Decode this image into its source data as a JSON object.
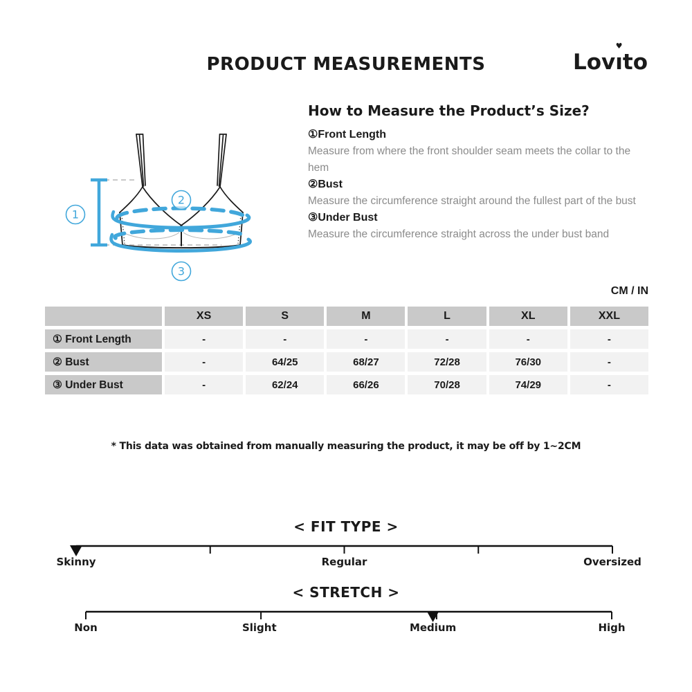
{
  "header": {
    "title": "PRODUCT MEASUREMENTS",
    "logo": "Lovito"
  },
  "how_to": {
    "heading": "How to Measure the Product’s Size?",
    "items": [
      {
        "marker": "①",
        "label": "Front Length",
        "description": "Measure from where the front shoulder seam meets the collar to the hem"
      },
      {
        "marker": "②",
        "label": "Bust",
        "description": "Measure the circumference straight around the fullest part of the bust"
      },
      {
        "marker": "③",
        "label": "Under Bust",
        "description": "Measure the circumference straight across the under bust band"
      }
    ]
  },
  "diagram": {
    "markers": [
      "1",
      "2",
      "3"
    ]
  },
  "units_label": "CM / IN",
  "size_table": {
    "columns": [
      "XS",
      "S",
      "M",
      "L",
      "XL",
      "XXL"
    ],
    "rows": [
      {
        "label": "① Front Length",
        "values": [
          "-",
          "-",
          "-",
          "-",
          "-",
          "-"
        ]
      },
      {
        "label": "② Bust",
        "values": [
          "-",
          "64/25",
          "68/27",
          "72/28",
          "76/30",
          "-"
        ]
      },
      {
        "label": "③ Under Bust",
        "values": [
          "-",
          "62/24",
          "66/26",
          "70/28",
          "74/29",
          "-"
        ]
      }
    ]
  },
  "footnote": "* This data was obtained from manually measuring the product, it may be off by 1~2CM",
  "scales": [
    {
      "title": "< FIT TYPE >",
      "marker_pct": 0,
      "ticks_pct": [
        0,
        25,
        50,
        75,
        100
      ],
      "labels": [
        {
          "text": "Skinny",
          "pct": 0
        },
        {
          "text": "Regular",
          "pct": 50
        },
        {
          "text": "Oversized",
          "pct": 100
        }
      ]
    },
    {
      "title": "< STRETCH >",
      "marker_pct": 66,
      "ticks_pct": [
        0,
        33.3,
        66.7,
        100
      ],
      "labels": [
        {
          "text": "Non",
          "pct": 0
        },
        {
          "text": "Slight",
          "pct": 33
        },
        {
          "text": "Medium",
          "pct": 66
        },
        {
          "text": "High",
          "pct": 100
        }
      ]
    }
  ],
  "colors": {
    "accent_blue": "#41a7db",
    "table_header_bg": "#c9c9c9",
    "table_cell_bg": "#f2f2f2",
    "muted_text": "#8b8b8b"
  }
}
